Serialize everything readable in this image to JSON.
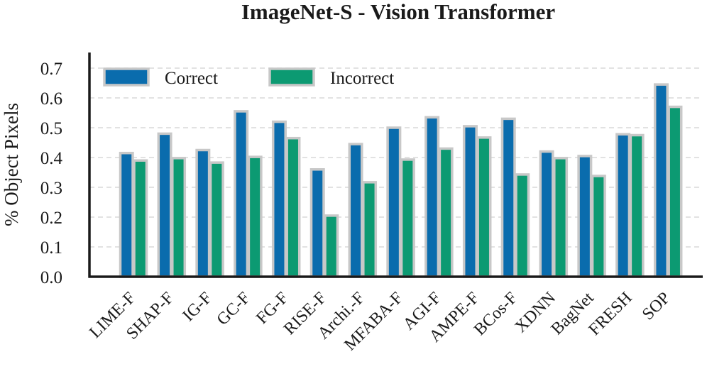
{
  "chart_data": {
    "type": "bar",
    "title": "ImageNet-S - Vision Transformer",
    "ylabel": "% Object Pixels",
    "xlabel": "",
    "ylim": [
      0,
      0.7
    ],
    "yticks": [
      "0.0",
      "0.1",
      "0.2",
      "0.3",
      "0.4",
      "0.5",
      "0.6",
      "0.7"
    ],
    "grid": "horizontal dashed",
    "legend_position": "top-left",
    "categories": [
      "LIME-F",
      "SHAP-F",
      "IG-F",
      "GC-F",
      "FG-F",
      "RISE-F",
      "Archi.-F",
      "MFABA-F",
      "AGI-F",
      "AMPE-F",
      "BCos-F",
      "XDNN",
      "BagNet",
      "FRESH",
      "SOP"
    ],
    "series": [
      {
        "name": "Correct",
        "color": "#0a6cad",
        "values": [
          0.415,
          0.48,
          0.425,
          0.555,
          0.52,
          0.36,
          0.445,
          0.5,
          0.535,
          0.505,
          0.53,
          0.42,
          0.405,
          0.478,
          0.645
        ]
      },
      {
        "name": "Incorrect",
        "color": "#0c9a72",
        "values": [
          0.39,
          0.398,
          0.383,
          0.402,
          0.465,
          0.205,
          0.317,
          0.393,
          0.43,
          0.467,
          0.343,
          0.398,
          0.338,
          0.475,
          0.57
        ]
      }
    ]
  }
}
